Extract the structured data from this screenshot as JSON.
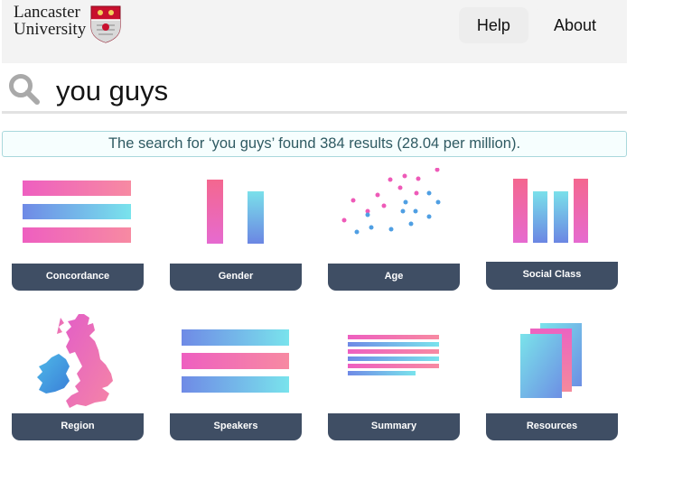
{
  "header": {
    "logo_line1": "Lancaster",
    "logo_line2": "University",
    "nav": [
      {
        "label": "Help"
      },
      {
        "label": "About"
      }
    ]
  },
  "search": {
    "value": "you guys",
    "icon": "search-icon"
  },
  "results": {
    "text": "The search for ‘you guys’ found 384 results (28.04 per million)."
  },
  "tiles": [
    {
      "label": "Concordance",
      "icon": "concordance-icon"
    },
    {
      "label": "Gender",
      "icon": "gender-icon"
    },
    {
      "label": "Age",
      "icon": "age-icon"
    },
    {
      "label": "Social Class",
      "icon": "social-class-icon"
    },
    {
      "label": "Region",
      "icon": "region-map-icon"
    },
    {
      "label": "Speakers",
      "icon": "speakers-icon"
    },
    {
      "label": "Summary",
      "icon": "summary-icon"
    },
    {
      "label": "Resources",
      "icon": "resources-icon"
    }
  ],
  "colors": {
    "pink": "#f264b4",
    "cyan": "#73dde8",
    "blue": "#5b86e0",
    "label_bg": "#3f4e64"
  }
}
